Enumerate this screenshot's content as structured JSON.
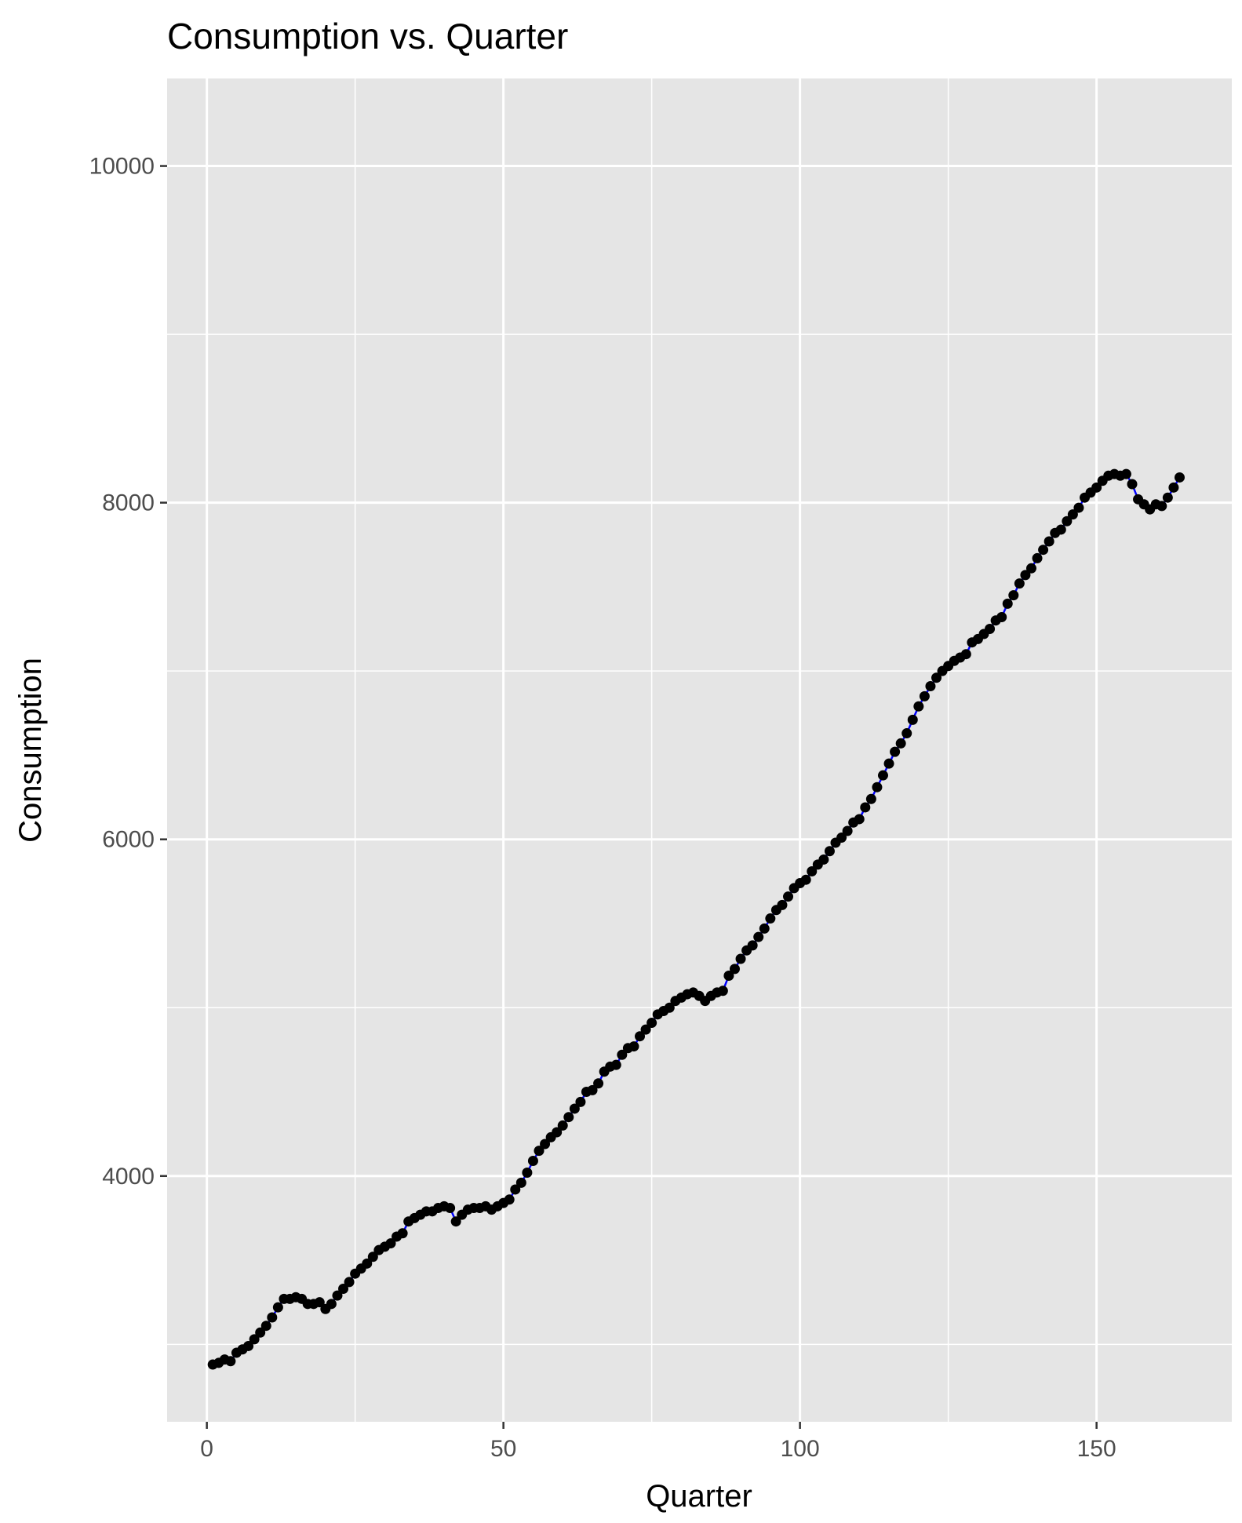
{
  "chart_data": {
    "type": "line",
    "title": "Consumption vs. Quarter",
    "xlabel": "Quarter",
    "ylabel": "Consumption",
    "xlim": [
      -6.7,
      172.8
    ],
    "ylim": [
      2540,
      10520
    ],
    "x_ticks": [
      0,
      50,
      100,
      150
    ],
    "y_ticks": [
      4000,
      6000,
      8000,
      10000
    ],
    "x_minor_ticks": [
      25,
      75,
      125
    ],
    "y_minor_ticks": [
      3000,
      5000,
      7000,
      9000
    ],
    "grid": true,
    "panel_color": "#e5e5e5",
    "grid_color": "#ffffff",
    "point_color": "#000000",
    "line_color": "#0000ff",
    "series": [
      {
        "x": [
          1,
          2,
          3,
          4,
          5,
          6,
          7,
          8,
          9,
          10,
          11,
          12,
          13,
          14,
          15,
          16,
          17,
          18,
          19,
          20,
          21,
          22,
          23,
          24,
          25,
          26,
          27,
          28,
          29,
          30,
          31,
          32,
          33,
          34,
          35,
          36,
          37,
          38,
          39,
          40,
          41,
          42,
          43,
          44,
          45,
          46,
          47,
          48,
          49,
          50,
          51,
          52,
          53,
          54,
          55,
          56,
          57,
          58,
          59,
          60,
          61,
          62,
          63,
          64,
          65,
          66,
          67,
          68,
          69,
          70,
          71,
          72,
          73,
          74,
          75,
          76,
          77,
          78,
          79,
          80,
          81,
          82,
          83,
          84,
          85,
          86,
          87,
          88,
          89,
          90,
          91,
          92,
          93,
          94,
          95,
          96,
          97,
          98,
          99,
          100,
          101,
          102,
          103,
          104,
          105,
          106,
          107,
          108,
          109,
          110,
          111,
          112,
          113,
          114,
          115,
          116,
          117,
          118,
          119,
          120,
          121,
          122,
          123,
          124,
          125,
          126,
          127,
          128,
          129,
          130,
          131,
          132,
          133,
          134,
          135,
          136,
          137,
          138,
          139,
          140,
          141,
          142,
          143,
          144,
          145,
          146,
          147,
          148,
          149,
          150,
          151,
          152,
          153,
          154,
          155,
          156,
          157,
          158,
          159,
          160,
          161,
          162,
          163,
          164
        ],
        "y": [
          2880,
          2890,
          2910,
          2900,
          2950,
          2970,
          2990,
          3030,
          3070,
          3110,
          3160,
          3220,
          3270,
          3270,
          3280,
          3270,
          3240,
          3240,
          3250,
          3210,
          3240,
          3290,
          3330,
          3370,
          3420,
          3450,
          3480,
          3520,
          3560,
          3580,
          3600,
          3640,
          3660,
          3730,
          3750,
          3770,
          3790,
          3790,
          3810,
          3820,
          3810,
          3730,
          3770,
          3800,
          3810,
          3810,
          3820,
          3800,
          3820,
          3840,
          3860,
          3920,
          3960,
          4020,
          4090,
          4150,
          4190,
          4230,
          4260,
          4300,
          4350,
          4400,
          4440,
          4500,
          4510,
          4550,
          4620,
          4650,
          4660,
          4720,
          4760,
          4770,
          4830,
          4870,
          4910,
          4960,
          4980,
          5000,
          5040,
          5060,
          5080,
          5090,
          5070,
          5040,
          5070,
          5090,
          5100,
          5190,
          5230,
          5290,
          5340,
          5370,
          5420,
          5470,
          5530,
          5580,
          5610,
          5660,
          5710,
          5740,
          5760,
          5810,
          5850,
          5880,
          5930,
          5980,
          6010,
          6050,
          6100,
          6120,
          6190,
          6240,
          6310,
          6380,
          6450,
          6520,
          6570,
          6630,
          6710,
          6790,
          6850,
          6910,
          6960,
          7000,
          7030,
          7060,
          7080,
          7100,
          7170,
          7190,
          7220,
          7250,
          7300,
          7320,
          7400,
          7450,
          7520,
          7570,
          7610,
          7670,
          7720,
          7770,
          7820,
          7840,
          7890,
          7930,
          7970,
          8030,
          8060,
          8090,
          8130,
          8160,
          8170,
          8160,
          8170,
          8110,
          8020,
          7990,
          7960,
          7990,
          7980,
          8030,
          8090,
          8150
        ]
      }
    ]
  }
}
